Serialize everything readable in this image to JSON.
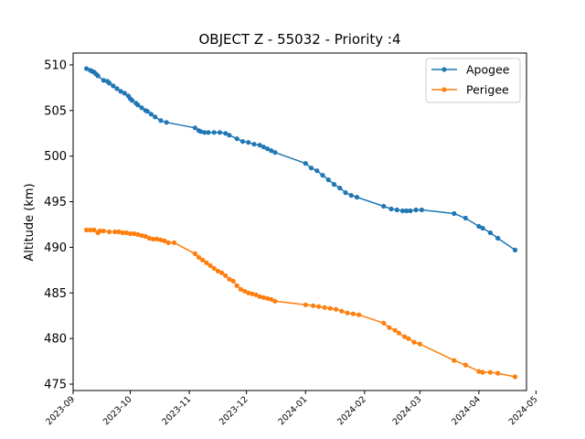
{
  "chart_data": {
    "type": "line",
    "title": "OBJECT Z - 55032 - Priority :4",
    "xlabel": "",
    "ylabel": "Altitude (km)",
    "x_axis": "date",
    "xlim": [
      "2023-09-01",
      "2024-04-26"
    ],
    "ylim": [
      474.3,
      511.3
    ],
    "yticks": [
      475,
      480,
      485,
      490,
      495,
      500,
      505,
      510
    ],
    "xticks": [
      "2023-09",
      "2023-10",
      "2023-11",
      "2023-12",
      "2024-01",
      "2024-02",
      "2024-03",
      "2024-04",
      "2024-05"
    ],
    "grid": false,
    "legend": "top-right",
    "series": [
      {
        "name": "Apogee",
        "color": "#1f77b4",
        "marker": "circle",
        "points": [
          [
            "2023-09-08",
            509.6
          ],
          [
            "2023-09-10",
            509.4
          ],
          [
            "2023-09-11",
            509.3
          ],
          [
            "2023-09-12",
            509.2
          ],
          [
            "2023-09-13",
            509.0
          ],
          [
            "2023-09-14",
            508.8
          ],
          [
            "2023-09-17",
            508.3
          ],
          [
            "2023-09-19",
            508.2
          ],
          [
            "2023-09-20",
            508.0
          ],
          [
            "2023-09-22",
            507.7
          ],
          [
            "2023-09-24",
            507.4
          ],
          [
            "2023-09-26",
            507.1
          ],
          [
            "2023-09-28",
            506.9
          ],
          [
            "2023-09-30",
            506.6
          ],
          [
            "2023-10-01",
            506.3
          ],
          [
            "2023-10-02",
            506.1
          ],
          [
            "2023-10-04",
            505.8
          ],
          [
            "2023-10-05",
            505.6
          ],
          [
            "2023-10-07",
            505.3
          ],
          [
            "2023-10-09",
            505.0
          ],
          [
            "2023-10-10",
            504.9
          ],
          [
            "2023-10-12",
            504.6
          ],
          [
            "2023-10-14",
            504.3
          ],
          [
            "2023-10-17",
            503.9
          ],
          [
            "2023-10-20",
            503.7
          ],
          [
            "2023-11-04",
            503.1
          ],
          [
            "2023-11-06",
            502.8
          ],
          [
            "2023-11-07",
            502.7
          ],
          [
            "2023-11-09",
            502.6
          ],
          [
            "2023-11-11",
            502.6
          ],
          [
            "2023-11-14",
            502.6
          ],
          [
            "2023-11-17",
            502.6
          ],
          [
            "2023-11-20",
            502.5
          ],
          [
            "2023-11-22",
            502.3
          ],
          [
            "2023-11-26",
            501.9
          ],
          [
            "2023-11-29",
            501.6
          ],
          [
            "2023-12-02",
            501.5
          ],
          [
            "2023-12-05",
            501.3
          ],
          [
            "2023-12-08",
            501.2
          ],
          [
            "2023-12-10",
            501.0
          ],
          [
            "2023-12-12",
            500.8
          ],
          [
            "2023-12-14",
            500.6
          ],
          [
            "2023-12-16",
            500.4
          ],
          [
            "2024-01-01",
            499.2
          ],
          [
            "2024-01-04",
            498.7
          ],
          [
            "2024-01-07",
            498.4
          ],
          [
            "2024-01-10",
            497.9
          ],
          [
            "2024-01-13",
            497.4
          ],
          [
            "2024-01-16",
            496.9
          ],
          [
            "2024-01-19",
            496.5
          ],
          [
            "2024-01-22",
            496.0
          ],
          [
            "2024-01-25",
            495.7
          ],
          [
            "2024-01-28",
            495.5
          ],
          [
            "2024-02-11",
            494.5
          ],
          [
            "2024-02-15",
            494.2
          ],
          [
            "2024-02-18",
            494.1
          ],
          [
            "2024-02-21",
            494.0
          ],
          [
            "2024-02-23",
            494.0
          ],
          [
            "2024-02-25",
            494.0
          ],
          [
            "2024-02-28",
            494.1
          ],
          [
            "2024-03-02",
            494.1
          ],
          [
            "2024-03-19",
            493.7
          ],
          [
            "2024-03-25",
            493.2
          ],
          [
            "2024-04-01",
            492.3
          ],
          [
            "2024-04-03",
            492.1
          ],
          [
            "2024-04-07",
            491.6
          ],
          [
            "2024-04-11",
            491.0
          ],
          [
            "2024-04-20",
            489.7
          ]
        ]
      },
      {
        "name": "Perigee",
        "color": "#ff7f0e",
        "marker": "circle",
        "points": [
          [
            "2023-09-08",
            491.9
          ],
          [
            "2023-09-10",
            491.9
          ],
          [
            "2023-09-12",
            491.9
          ],
          [
            "2023-09-14",
            491.6
          ],
          [
            "2023-09-15",
            491.8
          ],
          [
            "2023-09-17",
            491.8
          ],
          [
            "2023-09-20",
            491.7
          ],
          [
            "2023-09-23",
            491.7
          ],
          [
            "2023-09-25",
            491.7
          ],
          [
            "2023-09-27",
            491.6
          ],
          [
            "2023-09-29",
            491.6
          ],
          [
            "2023-10-01",
            491.5
          ],
          [
            "2023-10-03",
            491.5
          ],
          [
            "2023-10-05",
            491.4
          ],
          [
            "2023-10-07",
            491.3
          ],
          [
            "2023-10-09",
            491.2
          ],
          [
            "2023-10-11",
            491.0
          ],
          [
            "2023-10-13",
            490.9
          ],
          [
            "2023-10-15",
            490.9
          ],
          [
            "2023-10-17",
            490.8
          ],
          [
            "2023-10-19",
            490.7
          ],
          [
            "2023-10-21",
            490.5
          ],
          [
            "2023-10-24",
            490.5
          ],
          [
            "2023-11-04",
            489.3
          ],
          [
            "2023-11-06",
            488.9
          ],
          [
            "2023-11-08",
            488.6
          ],
          [
            "2023-11-10",
            488.3
          ],
          [
            "2023-11-12",
            488.0
          ],
          [
            "2023-11-14",
            487.7
          ],
          [
            "2023-11-16",
            487.4
          ],
          [
            "2023-11-18",
            487.2
          ],
          [
            "2023-11-20",
            486.9
          ],
          [
            "2023-11-22",
            486.5
          ],
          [
            "2023-11-24",
            486.3
          ],
          [
            "2023-11-26",
            485.8
          ],
          [
            "2023-11-28",
            485.4
          ],
          [
            "2023-11-30",
            485.2
          ],
          [
            "2023-12-02",
            485.0
          ],
          [
            "2023-12-04",
            484.9
          ],
          [
            "2023-12-06",
            484.8
          ],
          [
            "2023-12-08",
            484.6
          ],
          [
            "2023-12-10",
            484.5
          ],
          [
            "2023-12-12",
            484.4
          ],
          [
            "2023-12-14",
            484.3
          ],
          [
            "2023-12-16",
            484.1
          ],
          [
            "2024-01-01",
            483.7
          ],
          [
            "2024-01-05",
            483.6
          ],
          [
            "2024-01-08",
            483.5
          ],
          [
            "2024-01-11",
            483.4
          ],
          [
            "2024-01-14",
            483.3
          ],
          [
            "2024-01-17",
            483.2
          ],
          [
            "2024-01-20",
            483.0
          ],
          [
            "2024-01-23",
            482.8
          ],
          [
            "2024-01-26",
            482.7
          ],
          [
            "2024-01-29",
            482.6
          ],
          [
            "2024-02-11",
            481.7
          ],
          [
            "2024-02-14",
            481.2
          ],
          [
            "2024-02-17",
            480.9
          ],
          [
            "2024-02-19",
            480.6
          ],
          [
            "2024-02-22",
            480.2
          ],
          [
            "2024-02-24",
            480.0
          ],
          [
            "2024-02-27",
            479.6
          ],
          [
            "2024-03-01",
            479.4
          ],
          [
            "2024-03-19",
            477.6
          ],
          [
            "2024-03-25",
            477.1
          ],
          [
            "2024-04-01",
            476.4
          ],
          [
            "2024-04-03",
            476.3
          ],
          [
            "2024-04-07",
            476.3
          ],
          [
            "2024-04-11",
            476.2
          ],
          [
            "2024-04-20",
            475.8
          ]
        ]
      }
    ]
  }
}
